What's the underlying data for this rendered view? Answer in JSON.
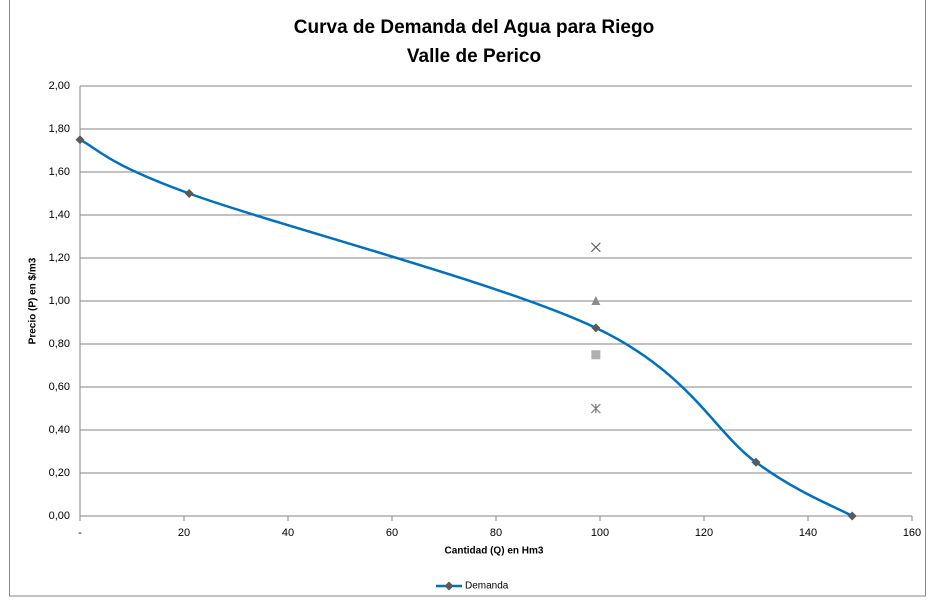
{
  "chart_data": {
    "type": "scatter",
    "title": "Curva de Demanda del Agua para Riego",
    "subtitle": "Valle de Perico",
    "x_label": "Cantidad (Q) en Hm3",
    "y_label": "Precio (P) en $/m3",
    "xlim": [
      0,
      160
    ],
    "xticks": [
      {
        "value": 0,
        "label": "-"
      },
      20,
      40,
      60,
      80,
      100,
      120,
      140,
      160
    ],
    "ylim": [
      0,
      2
    ],
    "yticks": [
      {
        "value": 0,
        "label": "0,00"
      },
      {
        "value": 0.2,
        "label": "0,20"
      },
      {
        "value": 0.4,
        "label": "0,40"
      },
      {
        "value": 0.6,
        "label": "0,60"
      },
      {
        "value": 0.8,
        "label": "0,80"
      },
      {
        "value": 1,
        "label": "1,00"
      },
      {
        "value": 1.2,
        "label": "1,20"
      },
      {
        "value": 1.4,
        "label": "1,40"
      },
      {
        "value": 1.6,
        "label": "1,60"
      },
      {
        "value": 1.8,
        "label": "1,80"
      },
      {
        "value": 2,
        "label": "2,00"
      }
    ],
    "grid": true,
    "legend": "bottom",
    "series": [
      {
        "name": "Demanda",
        "color": "#0070c0",
        "marker_color": "#5a5a5a",
        "marker": "diamond",
        "smooth": true,
        "x": [
          0,
          21,
          99.2,
          130,
          148.5
        ],
        "values": [
          1.75,
          1.5,
          0.875,
          0.25,
          0
        ]
      },
      {
        "color": "#595959",
        "marker": "x",
        "x": [
          99.2
        ],
        "values": [
          1.25
        ]
      },
      {
        "color": "#8c8c8c",
        "marker": "triangle",
        "x": [
          99.2
        ],
        "values": [
          1.0
        ]
      },
      {
        "color": "#b0b0b0",
        "marker": "square",
        "x": [
          99.2
        ],
        "values": [
          0.75
        ]
      },
      {
        "color": "#7a7a7a",
        "marker": "star",
        "x": [
          99.2
        ],
        "values": [
          0.5
        ]
      }
    ]
  }
}
